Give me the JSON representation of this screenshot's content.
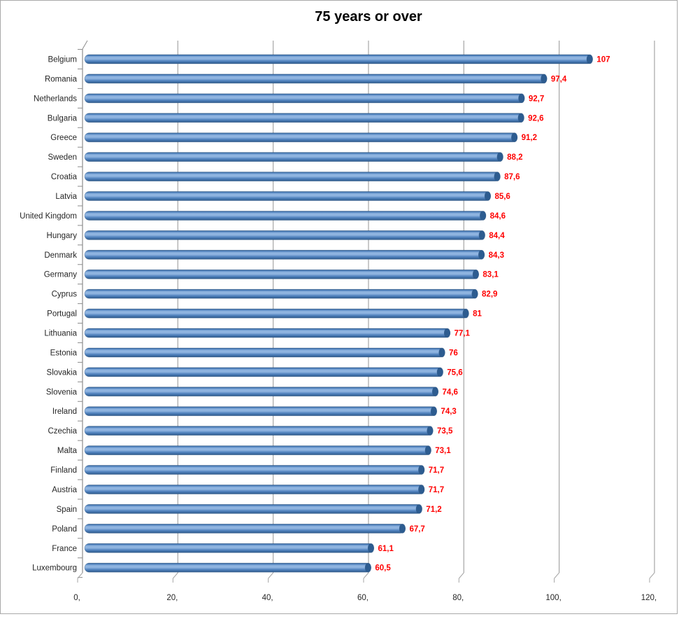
{
  "chart_data": {
    "type": "bar",
    "orientation": "horizontal",
    "title": "75 years or over",
    "categories": [
      "Belgium",
      "Romania",
      "Netherlands",
      "Bulgaria",
      "Greece",
      "Sweden",
      "Croatia",
      "Latvia",
      "United Kingdom",
      "Hungary",
      "Denmark",
      "Germany",
      "Cyprus",
      "Portugal",
      "Lithuania",
      "Estonia",
      "Slovakia",
      "Slovenia",
      "Ireland",
      "Czechia",
      "Malta",
      "Finland",
      "Austria",
      "Spain",
      "Poland",
      "France",
      "Luxembourg"
    ],
    "values": [
      107,
      97.4,
      92.7,
      92.6,
      91.2,
      88.2,
      87.6,
      85.6,
      84.6,
      84.4,
      84.3,
      83.1,
      82.9,
      81,
      77.1,
      76,
      75.6,
      74.6,
      74.3,
      73.5,
      73.1,
      71.7,
      71.7,
      71.2,
      67.7,
      61.1,
      60.5
    ],
    "value_labels": [
      "107",
      "97,4",
      "92,7",
      "92,6",
      "91,2",
      "88,2",
      "87,6",
      "85,6",
      "84,6",
      "84,4",
      "84,3",
      "83,1",
      "82,9",
      "81",
      "77,1",
      "76",
      "75,6",
      "74,6",
      "74,3",
      "73,5",
      "73,1",
      "71,7",
      "71,7",
      "71,2",
      "67,7",
      "61,1",
      "60,5"
    ],
    "x_ticks": [
      0,
      20,
      40,
      60,
      80,
      100,
      120
    ],
    "x_tick_labels": [
      "0,",
      "20,",
      "40,",
      "60,",
      "80,",
      "100,",
      "120,"
    ],
    "xlim": [
      0,
      120
    ],
    "grid": true,
    "legend": "none",
    "colors": {
      "bar_main": "#4F81BD",
      "bar_dark": "#2F5A8B",
      "bar_light": "#8FB4E0",
      "bar_cap": "#2D5C90",
      "bar_outline": "#2B527E",
      "value_label": "#FF0000",
      "text": "#262626",
      "grid": "#A6A6A6",
      "axis": "#8C8C8C",
      "background": "#FFFFFF",
      "frame_border": "#A9A9A9"
    }
  }
}
